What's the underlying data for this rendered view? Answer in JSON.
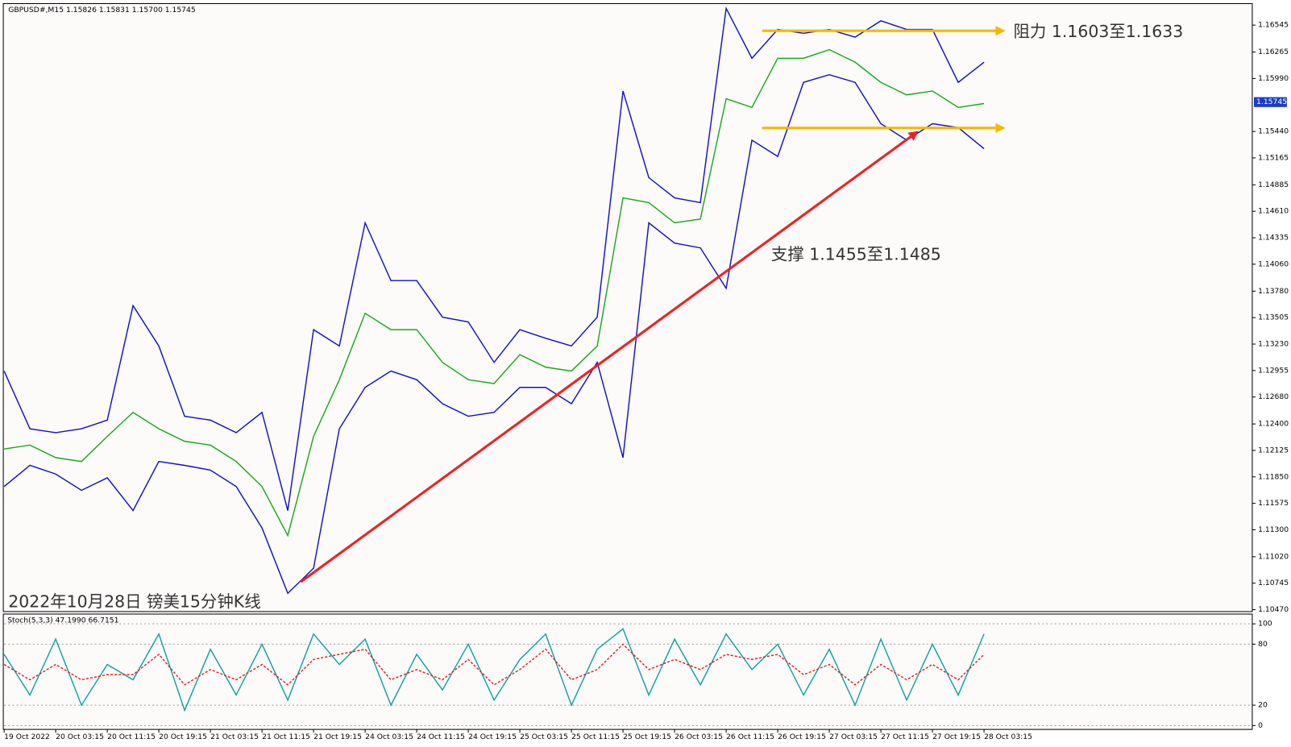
{
  "chart_data": [
    {
      "type": "line",
      "title": "GBPUSD#,M15  1.15826 1.15831 1.15700 1.15745",
      "annotations": [
        "阻力 1.1603至1.1633",
        "支撑 1.1455至1.1485",
        "2022年10月28日 镑美15分钟K线"
      ],
      "categories": [
        "19 Oct 2022",
        null,
        "20 Oct 03:15",
        null,
        "20 Oct 11:15",
        null,
        "20 Oct 19:15",
        null,
        "21 Oct 03:15",
        null,
        "21 Oct 11:15",
        null,
        "21 Oct 19:15",
        null,
        "24 Oct 03:15",
        null,
        "24 Oct 11:15",
        null,
        "24 Oct 19:15",
        null,
        "25 Oct 03:15",
        null,
        "25 Oct 11:15",
        null,
        "25 Oct 19:15",
        null,
        "26 Oct 03:15",
        null,
        "26 Oct 11:15",
        null,
        "26 Oct 19:15",
        null,
        "27 Oct 03:15",
        null,
        "27 Oct 11:15",
        null,
        "27 Oct 19:15",
        null,
        "28 Oct 03:15"
      ],
      "series": [
        {
          "color": "#1aa81a",
          "values": [
            1.1214,
            1.1218,
            1.1205,
            1.1201,
            1.1227,
            1.1252,
            1.1235,
            1.1222,
            1.1218,
            1.1201,
            1.1175,
            1.1124,
            1.1227,
            1.1286,
            1.1355,
            1.1338,
            1.1338,
            1.1304,
            1.1286,
            1.1282,
            1.1312,
            1.1299,
            1.1295,
            1.1321,
            1.1475,
            1.147,
            1.1449,
            1.1453,
            1.1578,
            1.1569,
            1.162,
            1.162,
            1.1629,
            1.1616,
            1.1595,
            1.1582,
            1.1586,
            1.1569,
            1.1573
          ]
        },
        {
          "color": "#1010c8",
          "values": [
            1.1295,
            1.1235,
            1.1231,
            1.1235,
            1.1244,
            1.1363,
            1.1321,
            1.1248,
            1.1244,
            1.1231,
            1.1252,
            1.115,
            1.1338,
            1.1321,
            1.1449,
            1.1389,
            1.1389,
            1.1351,
            1.1346,
            1.1304,
            1.1338,
            1.1329,
            1.1321,
            1.1351,
            1.1586,
            1.1496,
            1.1475,
            1.147,
            1.1672,
            1.162,
            1.165,
            1.1646,
            1.165,
            1.1642,
            1.1659,
            1.165,
            1.165,
            1.1595,
            1.1616
          ]
        },
        {
          "color": "#1010c8",
          "values": [
            1.1175,
            1.1197,
            1.1188,
            1.1171,
            1.1184,
            1.115,
            1.1201,
            1.1197,
            1.1192,
            1.1175,
            1.1132,
            1.1064,
            1.109,
            1.1235,
            1.1278,
            1.1295,
            1.1286,
            1.1261,
            1.1248,
            1.1252,
            1.1278,
            1.1278,
            1.1261,
            1.1304,
            1.1205,
            1.1449,
            1.1428,
            1.1423,
            1.1381,
            1.1535,
            1.1518,
            1.1595,
            1.1603,
            1.1595,
            1.1552,
            1.1535,
            1.1552,
            1.1548,
            1.1526
          ]
        }
      ],
      "ylim": [
        1.1045,
        1.1676
      ],
      "yticks": [
        1.16545,
        1.16265,
        {
          "value": 1.1599,
          "label": "1.15990"
        },
        {
          "value": 1.1544,
          "label": "1.15440"
        },
        1.15165,
        1.14885,
        {
          "value": 1.1461,
          "label": "1.14610"
        },
        1.14335,
        {
          "value": 1.1406,
          "label": "1.14060"
        },
        {
          "value": 1.1378,
          "label": "1.13780"
        },
        1.13505,
        {
          "value": 1.1323,
          "label": "1.13230"
        },
        1.12955,
        {
          "value": 1.1268,
          "label": "1.12680"
        },
        {
          "value": 1.124,
          "label": "1.12400"
        },
        1.12125,
        {
          "value": 1.1185,
          "label": "1.11850"
        },
        1.11575,
        {
          "value": 1.113,
          "label": "1.11300"
        },
        {
          "value": 1.1102,
          "label": "1.11020"
        },
        1.10745,
        {
          "value": 1.1047,
          "label": "1.10470"
        }
      ],
      "current_price": 1.15745
    },
    {
      "type": "line",
      "title": "Stoch(5,3,3) 47.1990 66.7151",
      "series": [
        {
          "color": "#10a0a0",
          "values": [
            70,
            30,
            85,
            20,
            60,
            45,
            90,
            15,
            75,
            30,
            80,
            25,
            90,
            60,
            85,
            20,
            70,
            35,
            80,
            25,
            65,
            90,
            20,
            75,
            95,
            30,
            85,
            40,
            90,
            55,
            80,
            30,
            75,
            20,
            85,
            25,
            80,
            30,
            90
          ]
        },
        {
          "color": "#e02020",
          "dashed": true,
          "values": [
            60,
            45,
            60,
            45,
            50,
            50,
            70,
            40,
            55,
            45,
            60,
            40,
            65,
            70,
            75,
            45,
            55,
            45,
            65,
            40,
            55,
            75,
            45,
            55,
            80,
            55,
            65,
            55,
            70,
            65,
            70,
            50,
            60,
            40,
            60,
            45,
            60,
            45,
            70
          ]
        }
      ],
      "ylim": [
        -3,
        108
      ],
      "yticks": [
        0,
        20,
        80,
        100
      ]
    }
  ]
}
